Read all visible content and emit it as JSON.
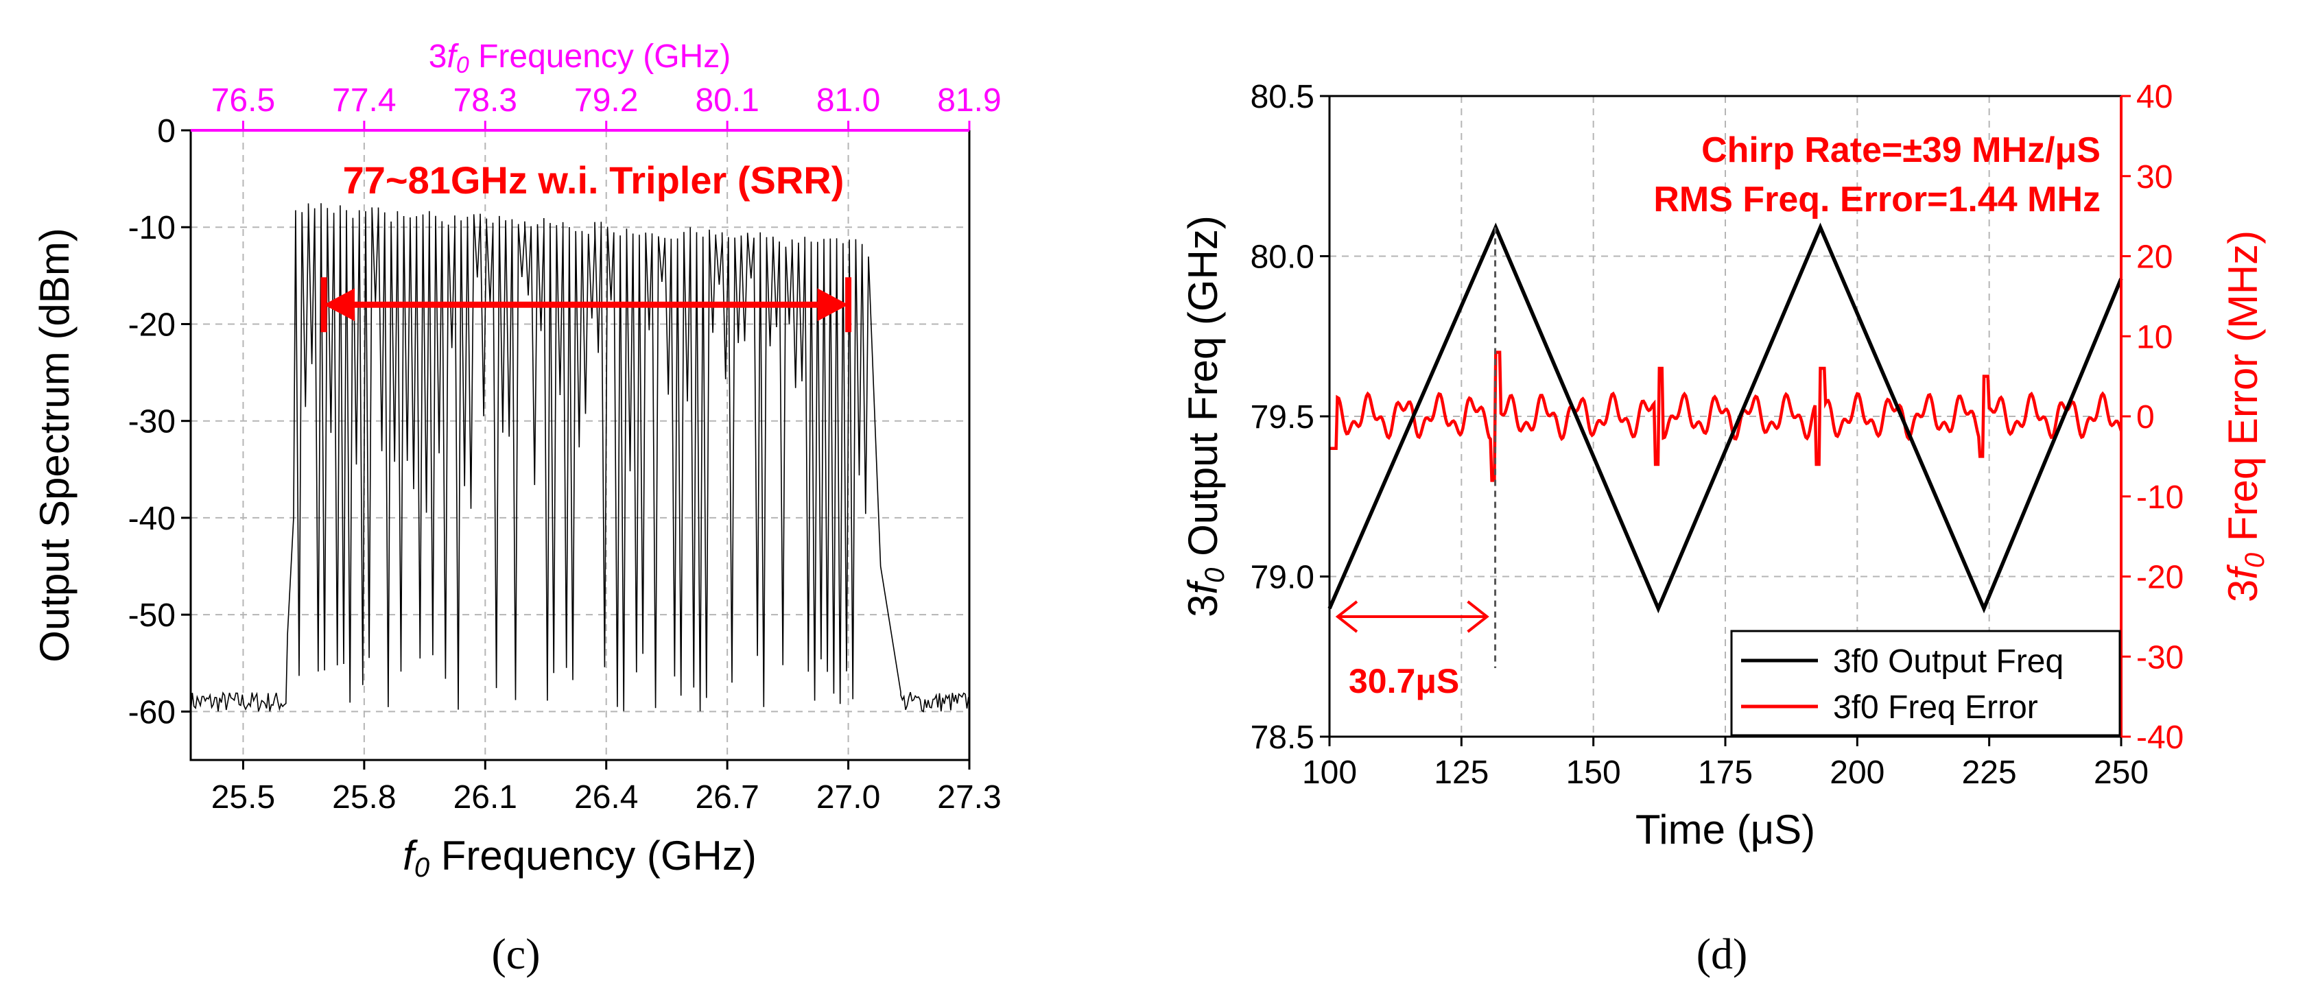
{
  "chart_data": [
    {
      "type": "line",
      "panel_label": "(c)",
      "xlabel_symbol": "f",
      "xlabel_sub": "0",
      "xlabel_rest": " Frequency (GHz)",
      "ylabel": "Output Spectrum (dBm)",
      "top_axis_label_pre": "3",
      "top_axis_label_sym": "f",
      "top_axis_label_sub": "0",
      "top_axis_label_rest": " Frequency (GHz)",
      "xlim": [
        25.37,
        27.3
      ],
      "ylim": [
        -65,
        0
      ],
      "x_ticks": [
        "25.5",
        "25.8",
        "26.1",
        "26.4",
        "26.7",
        "27.0",
        "27.3"
      ],
      "y_ticks": [
        "0",
        "-10",
        "-20",
        "-30",
        "-40",
        "-50",
        "-60"
      ],
      "top_ticks": [
        "76.5",
        "77.4",
        "78.3",
        "79.2",
        "80.1",
        "81.0",
        "81.9"
      ],
      "annotation": "77~81GHz w.i. Tripler (SRR)",
      "arrow_span_ghz": [
        25.7,
        27.0
      ],
      "arrow_level_dbm": -18,
      "spectrum": {
        "noise_floor_dbm": -59,
        "band_start_ghz": 25.63,
        "band_end_ghz": 27.05,
        "peak_start_dbm": -8,
        "peak_end_dbm": -12,
        "notch_bottom_dbm": -60,
        "line_count": 90
      }
    },
    {
      "type": "line",
      "panel_label": "(d)",
      "xlabel": "Time (μS)",
      "ylabel_left_pre": "3",
      "ylabel_left_sym": "f",
      "ylabel_left_sub": "0",
      "ylabel_left_rest": " Output Freq (GHz)",
      "ylabel_right_pre": "3",
      "ylabel_right_sym": "f",
      "ylabel_right_sub": "0",
      "ylabel_right_rest": " Freq Error (MHz)",
      "xlim": [
        100,
        250
      ],
      "ylim_left": [
        78.5,
        80.5
      ],
      "ylim_right": [
        -40,
        40
      ],
      "x_ticks": [
        "100",
        "125",
        "150",
        "175",
        "200",
        "225",
        "250"
      ],
      "y_ticks_left": [
        "78.5",
        "79.0",
        "79.5",
        "80.0",
        "80.5"
      ],
      "y_ticks_right": [
        "40",
        "30",
        "20",
        "10",
        "0",
        "-10",
        "-20",
        "-30",
        "-40"
      ],
      "annotation_line1": "Chirp Rate=±39 MHz/μS",
      "annotation_line2": "RMS Freq. Error=1.44 MHz",
      "period_label": "30.7μS",
      "period_marker_us": 131.4,
      "series": [
        {
          "name": "3f0 Output Freq",
          "color": "#000000",
          "points": [
            [
              100,
              78.9
            ],
            [
              131.5,
              80.09
            ],
            [
              162.3,
              78.9
            ],
            [
              193,
              80.09
            ],
            [
              224,
              78.9
            ],
            [
              250,
              79.93
            ]
          ]
        },
        {
          "name": "3f0 Freq Error",
          "color": "#ff0000",
          "spikes_us": [
            131.5,
            162.3,
            193,
            224
          ],
          "spike_amplitude_mhz": [
            8,
            -6,
            6,
            -5
          ],
          "baseline_mhz": 0,
          "ripple_mhz": 3
        }
      ],
      "legend": [
        "3f0 Output Freq",
        "3f0 Freq Error"
      ]
    }
  ]
}
